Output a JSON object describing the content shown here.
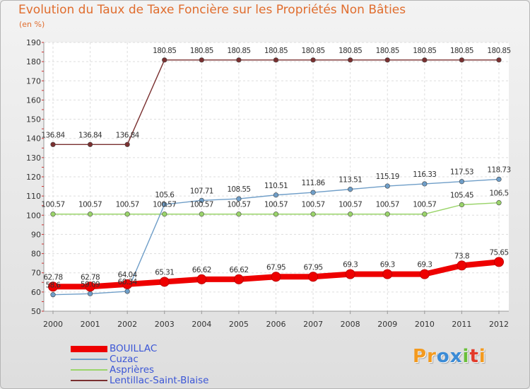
{
  "title": "Evolution du Taux de Taxe Foncière sur les Propriétés Non Bâties",
  "unit_label": "(en %)",
  "logo": {
    "text": "Proxiti",
    "letters": [
      "P",
      "r",
      "o",
      "x",
      "i",
      "t",
      "i"
    ],
    "colors": [
      "#f39a1f",
      "#f39a1f",
      "#3b8bd6",
      "#3b8bd6",
      "#6abf3a",
      "#e23a2a",
      "#f39a1f"
    ]
  },
  "chart_data": {
    "type": "line",
    "title": "Evolution du Taux de Taxe Foncière sur les Propriétés Non Bâties",
    "ylabel": "(en %)",
    "xlabel": "",
    "x": [
      "2000",
      "2001",
      "2002",
      "2003",
      "2004",
      "2005",
      "2006",
      "2007",
      "2008",
      "2009",
      "2010",
      "2011",
      "2012"
    ],
    "ylim": [
      50,
      190
    ],
    "yticks": [
      50,
      60,
      70,
      80,
      90,
      100,
      110,
      120,
      130,
      140,
      150,
      160,
      170,
      180,
      190
    ],
    "grid": true,
    "series": [
      {
        "name": "BOUILLAC",
        "color": "#ee0000",
        "values": [
          62.78,
          62.78,
          64.04,
          65.31,
          66.62,
          66.62,
          67.95,
          67.95,
          69.3,
          69.3,
          69.3,
          73.8,
          75.65
        ],
        "labels": [
          "62.78",
          "62.78",
          "64.04",
          "65.31",
          "66.62",
          "66.62",
          "67.95",
          "67.95",
          "69.3",
          "69.3",
          "69.3",
          "73.8",
          "75.65"
        ]
      },
      {
        "name": "Cuzac",
        "color": "#6f9ec8",
        "values": [
          58.6,
          59.09,
          60.34,
          105.6,
          107.71,
          108.55,
          110.51,
          111.86,
          113.51,
          115.19,
          116.33,
          117.53,
          118.73
        ],
        "labels": [
          "58.6",
          "59.09",
          "60.34",
          "105.6",
          "107.71",
          "108.55",
          "110.51",
          "111.86",
          "113.51",
          "115.19",
          "116.33",
          "117.53",
          "118.73"
        ]
      },
      {
        "name": "Asprières",
        "color": "#9ad46a",
        "values": [
          100.57,
          100.57,
          100.57,
          100.57,
          100.57,
          100.57,
          100.57,
          100.57,
          100.57,
          100.57,
          100.57,
          105.45,
          106.5
        ],
        "labels": [
          "100.57",
          "100.57",
          "100.57",
          "100.57",
          "100.57",
          "100.57",
          "100.57",
          "100.57",
          "100.57",
          "100.57",
          "100.57",
          "105.45",
          "106.5"
        ]
      },
      {
        "name": "Lentillac-Saint-Blaise",
        "color": "#7a3030",
        "values": [
          136.84,
          136.84,
          136.84,
          180.85,
          180.85,
          180.85,
          180.85,
          180.85,
          180.85,
          180.85,
          180.85,
          180.85,
          180.85
        ],
        "labels": [
          "136.84",
          "136.84",
          "136.84",
          "180.85",
          "180.85",
          "180.85",
          "180.85",
          "180.85",
          "180.85",
          "180.85",
          "180.85",
          "180.85",
          "180.85"
        ]
      }
    ],
    "legend": [
      "BOUILLAC",
      "Cuzac",
      "Asprières",
      "Lentillac-Saint-Blaise"
    ],
    "legend_position": "bottom-left"
  }
}
